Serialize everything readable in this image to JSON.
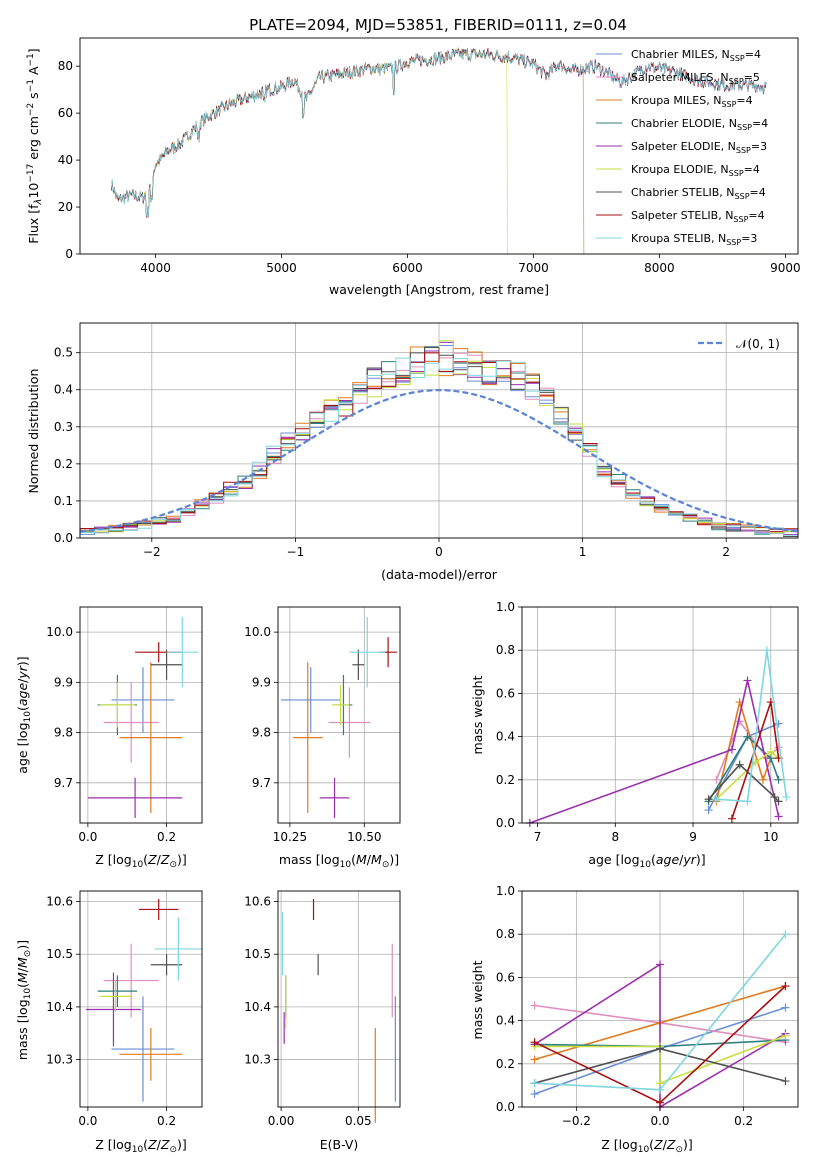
{
  "chart_data": [
    {
      "id": "spectrum",
      "type": "line",
      "title": "PLATE=2094, MJD=53851, FIBERID=0111, z=0.04",
      "xlabel": "wavelength [Angstrom, rest frame]",
      "ylabel": "Flux [f_λ10^-17 erg cm^-2 s^-1 A^-1]",
      "xlim": [
        3400,
        9100
      ],
      "ylim": [
        0,
        92
      ],
      "xticks": [
        4000,
        5000,
        6000,
        7000,
        8000,
        9000
      ],
      "yticks": [
        0,
        20,
        40,
        60,
        80
      ],
      "grid": false,
      "legend_position": "top-right",
      "continuum_points": [
        [
          3650,
          30
        ],
        [
          3700,
          23
        ],
        [
          3800,
          25
        ],
        [
          3900,
          24
        ],
        [
          3950,
          29
        ],
        [
          4000,
          38
        ],
        [
          4100,
          44
        ],
        [
          4200,
          47
        ],
        [
          4300,
          53
        ],
        [
          4400,
          58
        ],
        [
          4500,
          61
        ],
        [
          4600,
          64
        ],
        [
          4700,
          66
        ],
        [
          4800,
          68
        ],
        [
          4900,
          70
        ],
        [
          5000,
          71
        ],
        [
          5100,
          74
        ],
        [
          5200,
          66
        ],
        [
          5300,
          75
        ],
        [
          5500,
          77
        ],
        [
          5700,
          79
        ],
        [
          5900,
          79
        ],
        [
          6000,
          82
        ],
        [
          6200,
          83
        ],
        [
          6400,
          85
        ],
        [
          6600,
          85
        ],
        [
          6800,
          84
        ],
        [
          7000,
          81
        ],
        [
          7100,
          76
        ],
        [
          7200,
          81
        ],
        [
          7300,
          78
        ],
        [
          7500,
          80
        ],
        [
          7700,
          73
        ],
        [
          7900,
          80
        ],
        [
          8100,
          78
        ],
        [
          8300,
          74
        ],
        [
          8500,
          72
        ],
        [
          8700,
          72
        ],
        [
          8850,
          71
        ]
      ],
      "series": [
        {
          "name": "Chabrier MILES, N_SSP=4",
          "color": "#6a8fd6",
          "drop_at": null
        },
        {
          "name": "Salpeter MILES, N_SSP=5",
          "color": "#e08ec0",
          "drop_at": null
        },
        {
          "name": "Kroupa MILES, N_SSP=4",
          "color": "#e07b1f",
          "drop_at": 7400
        },
        {
          "name": "Chabrier ELODIE, N_SSP=4",
          "color": "#2f7f7f",
          "drop_at": null
        },
        {
          "name": "Salpeter ELODIE, N_SSP=3",
          "color": "#9b2fae",
          "drop_at": null
        },
        {
          "name": "Kroupa ELODIE, N_SSP=4",
          "color": "#c7df3f",
          "drop_at": 6790
        },
        {
          "name": "Chabrier STELIB, N_SSP=4",
          "color": "#505050",
          "drop_at": null
        },
        {
          "name": "Salpeter STELIB, N_SSP=4",
          "color": "#a80f0f",
          "drop_at": null
        },
        {
          "name": "Kroupa STELIB, N_SSP=3",
          "color": "#7fd6e0",
          "drop_at": null
        }
      ]
    },
    {
      "id": "residuals",
      "type": "histogram",
      "xlabel": "(data-model)/error",
      "ylabel": "Normed distribution",
      "xlim": [
        -2.5,
        2.5
      ],
      "ylim": [
        0,
        0.58
      ],
      "xticks": [
        -2,
        -1,
        0,
        1,
        2
      ],
      "yticks": [
        0.0,
        0.1,
        0.2,
        0.3,
        0.4,
        0.5
      ],
      "grid": true,
      "legend_position": "top-right",
      "legend_label": "𝒩(0, 1)",
      "bin_width": 0.1,
      "bin_start": -2.5,
      "typical_heights": [
        0.02,
        0.02,
        0.025,
        0.03,
        0.035,
        0.045,
        0.055,
        0.07,
        0.09,
        0.11,
        0.13,
        0.15,
        0.18,
        0.22,
        0.26,
        0.29,
        0.32,
        0.34,
        0.36,
        0.39,
        0.42,
        0.44,
        0.45,
        0.47,
        0.48,
        0.49,
        0.47,
        0.46,
        0.45,
        0.44,
        0.43,
        0.41,
        0.37,
        0.33,
        0.29,
        0.24,
        0.19,
        0.15,
        0.12,
        0.1,
        0.08,
        0.065,
        0.055,
        0.045,
        0.035,
        0.03,
        0.025,
        0.02,
        0.02,
        0.015
      ]
    },
    {
      "id": "age-vs-Z",
      "type": "scatter",
      "xlabel": "Z [log10(Z/Z⊙)]",
      "ylabel": "age [log10(age/yr)]",
      "xlim": [
        -0.02,
        0.29
      ],
      "ylim": [
        9.62,
        10.05
      ],
      "xticks": [
        0.0,
        0.2
      ],
      "yticks": [
        9.7,
        9.8,
        9.9,
        10.0
      ],
      "grid": true,
      "points": [
        {
          "x": 0.14,
          "y": 9.865,
          "xerr": 0.08,
          "yerr": 0.065
        },
        {
          "x": 0.11,
          "y": 9.82,
          "xerr": 0.07,
          "yerr": 0.08
        },
        {
          "x": 0.16,
          "y": 9.79,
          "xerr": 0.08,
          "yerr": 0.15
        },
        {
          "x": 0.075,
          "y": 9.855,
          "xerr": 0.05,
          "yerr": 0.06
        },
        {
          "x": 0.12,
          "y": 9.67,
          "xerr": 0.12,
          "yerr": 0.04
        },
        {
          "x": 0.075,
          "y": 9.855,
          "xerr": 0.045,
          "yerr": 0.045
        },
        {
          "x": 0.2,
          "y": 9.935,
          "xerr": 0.04,
          "yerr": 0.03
        },
        {
          "x": 0.18,
          "y": 9.96,
          "xerr": 0.06,
          "yerr": 0.02
        },
        {
          "x": 0.24,
          "y": 9.96,
          "xerr": 0.04,
          "yerr": 0.07
        }
      ]
    },
    {
      "id": "age-vs-mass",
      "type": "scatter",
      "xlabel": "mass [log10(M/M⊙)]",
      "ylabel": "",
      "xlim": [
        10.21,
        10.62
      ],
      "ylim": [
        9.62,
        10.05
      ],
      "xticks": [
        10.25,
        10.5
      ],
      "yticks": [
        9.7,
        9.8,
        9.9,
        10.0
      ],
      "grid": true,
      "points": [
        {
          "x": 10.32,
          "y": 9.865,
          "xerr": 0.1,
          "yerr": 0.065
        },
        {
          "x": 10.45,
          "y": 9.82,
          "xerr": 0.07,
          "yerr": 0.07
        },
        {
          "x": 10.31,
          "y": 9.79,
          "xerr": 0.05,
          "yerr": 0.15
        },
        {
          "x": 10.43,
          "y": 9.855,
          "xerr": 0.03,
          "yerr": 0.06
        },
        {
          "x": 10.4,
          "y": 9.67,
          "xerr": 0.05,
          "yerr": 0.04
        },
        {
          "x": 10.42,
          "y": 9.855,
          "xerr": 0.03,
          "yerr": 0.04
        },
        {
          "x": 10.48,
          "y": 9.935,
          "xerr": 0.02,
          "yerr": 0.03
        },
        {
          "x": 10.58,
          "y": 9.96,
          "xerr": 0.03,
          "yerr": 0.03
        },
        {
          "x": 10.51,
          "y": 9.96,
          "xerr": 0.06,
          "yerr": 0.07
        }
      ]
    },
    {
      "id": "weight-vs-age",
      "type": "line",
      "xlabel": "age [log10(age/yr)]",
      "ylabel": "mass weight",
      "xlim": [
        6.8,
        10.35
      ],
      "ylim": [
        0,
        1.0
      ],
      "xticks": [
        7,
        8,
        9,
        10
      ],
      "yticks": [
        0.0,
        0.2,
        0.4,
        0.6,
        0.8,
        1.0
      ],
      "grid": true,
      "series": [
        {
          "points": [
            [
              9.2,
              0.06
            ],
            [
              9.7,
              0.4
            ],
            [
              10.1,
              0.46
            ]
          ]
        },
        {
          "points": [
            [
              9.3,
              0.2
            ],
            [
              9.6,
              0.47
            ],
            [
              9.95,
              0.3
            ],
            [
              10.1,
              0.35
            ]
          ]
        },
        {
          "points": [
            [
              9.3,
              0.1
            ],
            [
              9.6,
              0.56
            ],
            [
              9.9,
              0.2
            ],
            [
              10.0,
              0.3
            ]
          ]
        },
        {
          "points": [
            [
              9.2,
              0.1
            ],
            [
              9.7,
              0.4
            ],
            [
              10.0,
              0.3
            ],
            [
              10.1,
              0.2
            ]
          ]
        },
        {
          "points": [
            [
              6.9,
              0.0
            ],
            [
              9.5,
              0.34
            ],
            [
              9.7,
              0.66
            ],
            [
              10.1,
              0.03
            ]
          ]
        },
        {
          "points": [
            [
              9.3,
              0.11
            ],
            [
              9.8,
              0.28
            ],
            [
              10.0,
              0.33
            ],
            [
              10.1,
              0.3
            ]
          ]
        },
        {
          "points": [
            [
              9.2,
              0.11
            ],
            [
              9.6,
              0.27
            ],
            [
              10.05,
              0.12
            ],
            [
              10.1,
              0.1
            ]
          ]
        },
        {
          "points": [
            [
              9.5,
              0.02
            ],
            [
              10.0,
              0.56
            ],
            [
              10.1,
              0.3
            ]
          ]
        },
        {
          "points": [
            [
              9.3,
              0.11
            ],
            [
              9.7,
              0.1
            ],
            [
              9.95,
              0.8
            ],
            [
              10.2,
              0.12
            ]
          ]
        }
      ]
    },
    {
      "id": "mass-vs-Z",
      "type": "scatter",
      "xlabel": "Z [log10(Z/Z⊙)]",
      "ylabel": "mass [log10(M/M⊙)]",
      "xlim": [
        -0.02,
        0.29
      ],
      "ylim": [
        10.21,
        10.62
      ],
      "xticks": [
        0.0,
        0.2
      ],
      "yticks": [
        10.3,
        10.4,
        10.5,
        10.6
      ],
      "grid": true,
      "points": [
        {
          "x": 0.14,
          "y": 10.32,
          "xerr": 0.08,
          "yerr": 0.1
        },
        {
          "x": 0.11,
          "y": 10.45,
          "xerr": 0.07,
          "yerr": 0.07
        },
        {
          "x": 0.16,
          "y": 10.31,
          "xerr": 0.08,
          "yerr": 0.05
        },
        {
          "x": 0.075,
          "y": 10.43,
          "xerr": 0.05,
          "yerr": 0.03
        },
        {
          "x": 0.065,
          "y": 10.395,
          "xerr": 0.07,
          "yerr": 0.07
        },
        {
          "x": 0.07,
          "y": 10.42,
          "xerr": 0.04,
          "yerr": 0.03
        },
        {
          "x": 0.2,
          "y": 10.48,
          "xerr": 0.04,
          "yerr": 0.02
        },
        {
          "x": 0.18,
          "y": 10.585,
          "xerr": 0.05,
          "yerr": 0.02
        },
        {
          "x": 0.23,
          "y": 10.51,
          "xerr": 0.06,
          "yerr": 0.06
        }
      ]
    },
    {
      "id": "mass-vs-ebv",
      "type": "scatter",
      "xlabel": "E(B-V)",
      "ylabel": "",
      "xlim": [
        -0.002,
        0.077
      ],
      "ylim": [
        10.21,
        10.62
      ],
      "xticks": [
        0.0,
        0.05
      ],
      "yticks": [
        10.3,
        10.4,
        10.5,
        10.6
      ],
      "grid": true,
      "points": [
        {
          "x": 0.074,
          "y": 10.32,
          "xerr": 0,
          "yerr": 0.1
        },
        {
          "x": 0.072,
          "y": 10.45,
          "xerr": 0,
          "yerr": 0.07
        },
        {
          "x": 0.061,
          "y": 10.27,
          "xerr": 0,
          "yerr": 0.09
        },
        {
          "x": 0.003,
          "y": 10.42,
          "xerr": 0,
          "yerr": 0.04
        },
        {
          "x": 0.002,
          "y": 10.36,
          "xerr": 0,
          "yerr": 0.03
        },
        {
          "x": 0.003,
          "y": 10.41,
          "xerr": 0,
          "yerr": 0.05
        },
        {
          "x": 0.024,
          "y": 10.48,
          "xerr": 0,
          "yerr": 0.02
        },
        {
          "x": 0.021,
          "y": 10.585,
          "xerr": 0,
          "yerr": 0.02
        },
        {
          "x": 0.001,
          "y": 10.52,
          "xerr": 0,
          "yerr": 0.06
        }
      ]
    },
    {
      "id": "weight-vs-Z",
      "type": "line",
      "xlabel": "Z [log10(Z/Z⊙)]",
      "ylabel": "mass weight",
      "xlim": [
        -0.33,
        0.33
      ],
      "ylim": [
        0,
        1.0
      ],
      "xticks": [
        -0.2,
        0.0,
        0.2
      ],
      "yticks": [
        0.0,
        0.2,
        0.4,
        0.6,
        0.8,
        1.0
      ],
      "grid": true,
      "series": [
        {
          "points": [
            [
              -0.3,
              0.06
            ],
            [
              0.0,
              0.27
            ],
            [
              0.3,
              0.46
            ]
          ]
        },
        {
          "points": [
            [
              -0.3,
              0.47
            ],
            [
              0.0,
              0.39
            ],
            [
              0.3,
              0.3
            ]
          ]
        },
        {
          "points": [
            [
              -0.3,
              0.22
            ],
            [
              0.0,
              0.39
            ],
            [
              0.3,
              0.56
            ]
          ]
        },
        {
          "points": [
            [
              -0.3,
              0.29
            ],
            [
              0.0,
              0.28
            ],
            [
              0.3,
              0.31
            ]
          ]
        },
        {
          "points": [
            [
              -0.3,
              0.29
            ],
            [
              0.0,
              0.66
            ],
            [
              0.0,
              0.0
            ],
            [
              0.3,
              0.34
            ]
          ]
        },
        {
          "points": [
            [
              -0.3,
              0.28
            ],
            [
              0.0,
              0.28
            ],
            [
              0.0,
              0.11
            ],
            [
              0.3,
              0.33
            ]
          ]
        },
        {
          "points": [
            [
              -0.3,
              0.11
            ],
            [
              0.0,
              0.27
            ],
            [
              0.3,
              0.12
            ]
          ]
        },
        {
          "points": [
            [
              -0.3,
              0.3
            ],
            [
              0.0,
              0.02
            ],
            [
              0.3,
              0.56
            ]
          ]
        },
        {
          "points": [
            [
              -0.3,
              0.11
            ],
            [
              0.0,
              0.08
            ],
            [
              0.3,
              0.8
            ]
          ]
        }
      ]
    }
  ]
}
